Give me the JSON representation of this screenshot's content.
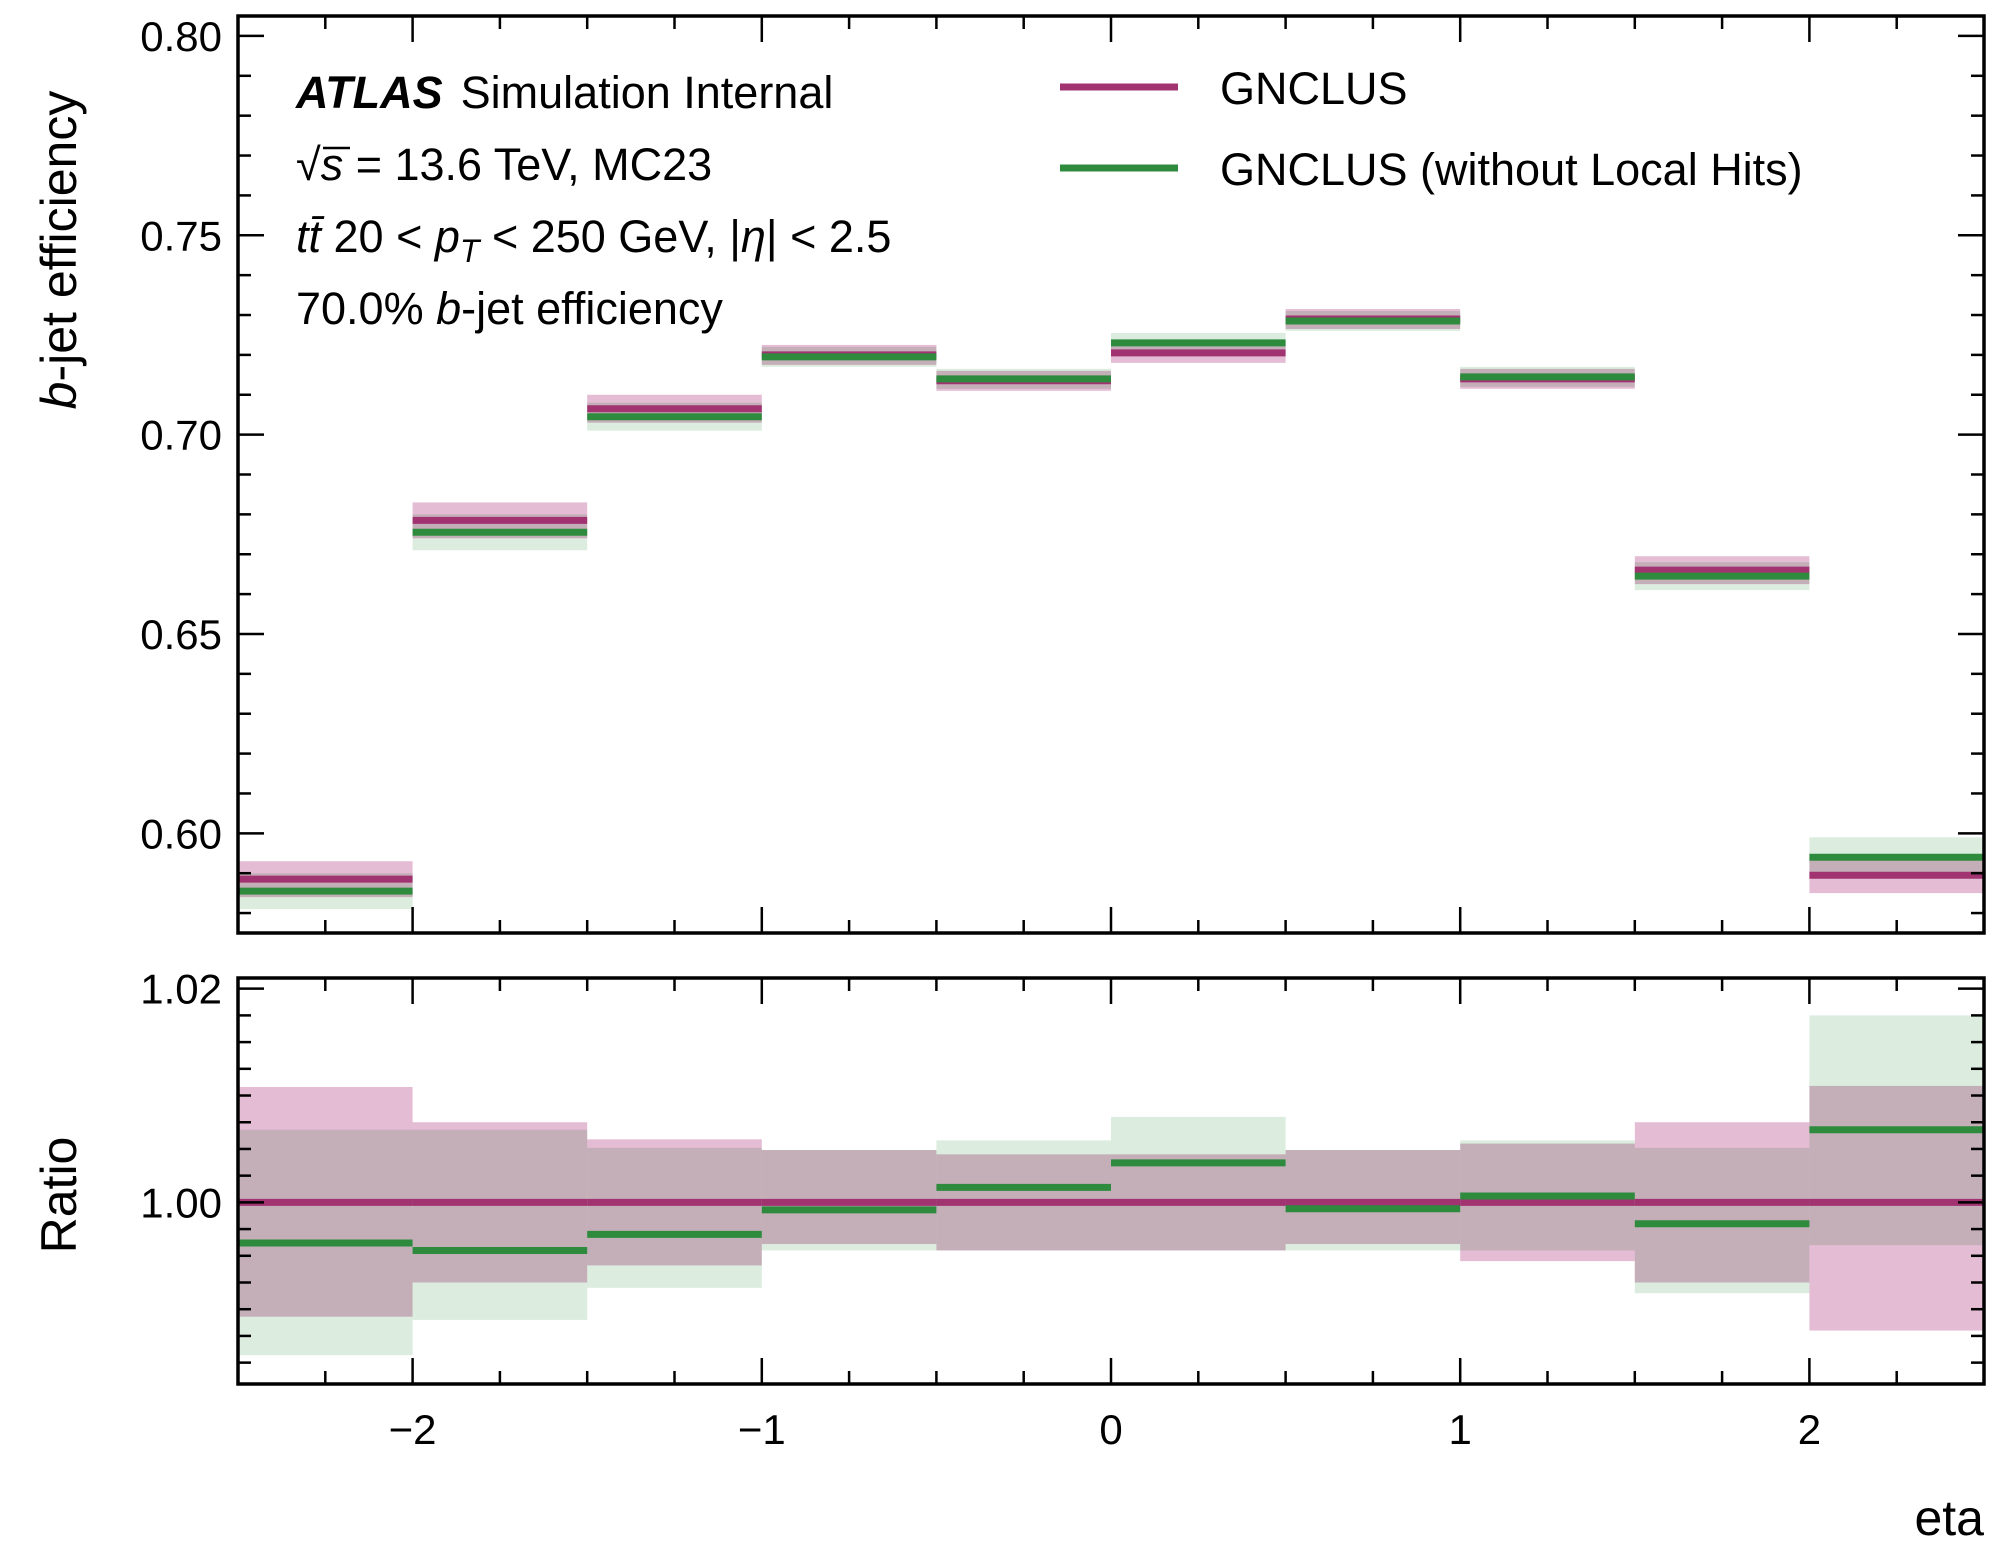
{
  "chart_data": [
    {
      "type": "step",
      "panel": "main",
      "ylabel_italic": "b",
      "ylabel_rest": "-jet efficiency",
      "ylim": [
        0.575,
        0.805
      ],
      "yticks": [
        0.6,
        0.65,
        0.7,
        0.75,
        0.8
      ],
      "ytick_labels": [
        "0.60",
        "0.65",
        "0.70",
        "0.75",
        "0.80"
      ],
      "bin_edges": [
        -2.5,
        -2.0,
        -1.5,
        -1.0,
        -0.5,
        0.0,
        0.5,
        1.0,
        1.5,
        2.0,
        2.5
      ],
      "series": [
        {
          "name": "GNCLUS",
          "color": "#a03370",
          "band_color": "#e4bcd4",
          "values": [
            0.5885,
            0.6785,
            0.7065,
            0.72,
            0.7135,
            0.7205,
            0.729,
            0.714,
            0.666,
            0.5895
          ],
          "errors": [
            0.0045,
            0.0045,
            0.0035,
            0.0025,
            0.0025,
            0.0025,
            0.0025,
            0.0025,
            0.0035,
            0.0045
          ]
        },
        {
          "name": "GNCLUS (without Local Hits)",
          "color": "#2e8b3e",
          "band_color": "#bfdfc4",
          "values": [
            0.5855,
            0.6755,
            0.7045,
            0.7195,
            0.714,
            0.723,
            0.7285,
            0.7145,
            0.6645,
            0.594
          ],
          "errors": [
            0.0045,
            0.0045,
            0.0035,
            0.0025,
            0.0025,
            0.0025,
            0.0025,
            0.0025,
            0.0035,
            0.005
          ]
        }
      ]
    },
    {
      "type": "step",
      "panel": "ratio",
      "ylabel": "Ratio",
      "xlabel": "eta",
      "ylim": [
        0.983,
        1.021
      ],
      "yticks": [
        1.0,
        1.02
      ],
      "ytick_labels": [
        "1.00",
        "1.02"
      ],
      "xlim": [
        -2.5,
        2.5
      ],
      "xticks": [
        -2,
        -1,
        0,
        1,
        2
      ],
      "xtick_labels": [
        "−2",
        "−1",
        "0",
        "1",
        "2"
      ],
      "bin_edges": [
        -2.5,
        -2.0,
        -1.5,
        -1.0,
        -0.5,
        0.0,
        0.5,
        1.0,
        1.5,
        2.0,
        2.5
      ],
      "series": [
        {
          "name": "GNCLUS",
          "color": "#a03370",
          "band_color": "#e4bcd4",
          "values": [
            1.0,
            1.0,
            1.0,
            1.0,
            1.0,
            1.0,
            1.0,
            1.0,
            1.0,
            1.0
          ],
          "band_low": [
            0.9893,
            0.9925,
            0.9941,
            0.9961,
            0.9955,
            0.9955,
            0.9961,
            0.9945,
            0.9925,
            0.988
          ],
          "band_high": [
            1.0108,
            1.0075,
            1.0059,
            1.0049,
            1.0045,
            1.0045,
            1.0049,
            1.0055,
            1.0075,
            1.0109
          ]
        },
        {
          "name": "GNCLUS (without Local Hits)",
          "color": "#2e8b3e",
          "band_color": "#bfdfc4",
          "values": [
            0.9962,
            0.9955,
            0.997,
            0.9993,
            1.0014,
            1.0037,
            0.9994,
            1.0006,
            0.998,
            1.0068
          ],
          "band_low": [
            0.9857,
            0.989,
            0.992,
            0.9955,
            0.9955,
            0.9955,
            0.9955,
            0.9955,
            0.9915,
            0.996
          ],
          "band_high": [
            1.0068,
            1.0068,
            1.0051,
            1.0049,
            1.0058,
            1.008,
            1.0049,
            1.0058,
            1.0051,
            1.0175
          ]
        }
      ]
    }
  ],
  "annotations": {
    "atlas": "ATLAS",
    "atlas_rest": "Simulation Internal",
    "line2_sqrt": "√",
    "line2_s": "s",
    "line2_rest": " = 13.6 TeV, MC23",
    "line3_tt": "tt̄",
    "line3_a": " 20 < ",
    "line3_p": "p",
    "line3_T": "T",
    "line3_b": " < 250 GeV, |",
    "line3_eta": "η",
    "line3_c": "| < 2.5",
    "line4_a": "70.0% ",
    "line4_b": "b",
    "line4_c": "-jet efficiency"
  },
  "legend": {
    "placement": "top-right",
    "items": [
      "GNCLUS",
      "GNCLUS (without Local Hits)"
    ]
  }
}
